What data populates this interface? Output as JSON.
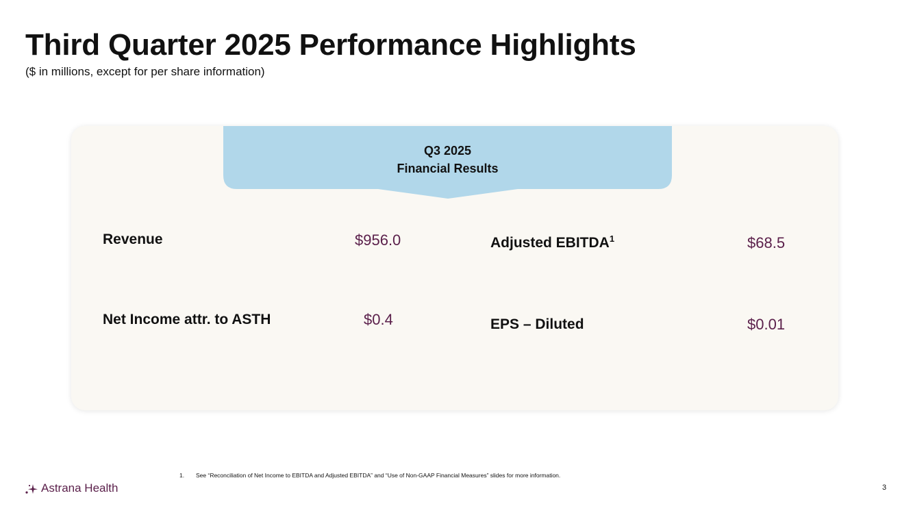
{
  "slide": {
    "title": "Third Quarter 2025 Performance Highlights",
    "subtitle": "($ in millions, except for per share information)",
    "page_number": "3"
  },
  "banner": {
    "line1": "Q3 2025",
    "line2": "Financial Results",
    "color": "#b1d7ea"
  },
  "metrics": {
    "revenue": {
      "label": "Revenue",
      "value": "$956.0"
    },
    "adjusted_ebitda": {
      "label": "Adjusted EBITDA",
      "footnote_marker": "1",
      "value": "$68.5"
    },
    "net_income": {
      "label": "Net Income attr. to ASTH",
      "value": "$0.4"
    },
    "eps": {
      "label": "EPS – Diluted",
      "value": "$0.01"
    }
  },
  "footnote": {
    "number": "1.",
    "text": "See “Reconciliation of Net Income to EBITDA and Adjusted EBITDA”  and  “Use of Non-GAAP Financial Measures” slides for more information."
  },
  "logo": {
    "text": "Astrana Health",
    "icon": "astrana-sparkle-icon"
  },
  "colors": {
    "value_color": "#5a1f4a",
    "card_bg": "#faf8f3",
    "brand": "#5a1f4a"
  }
}
